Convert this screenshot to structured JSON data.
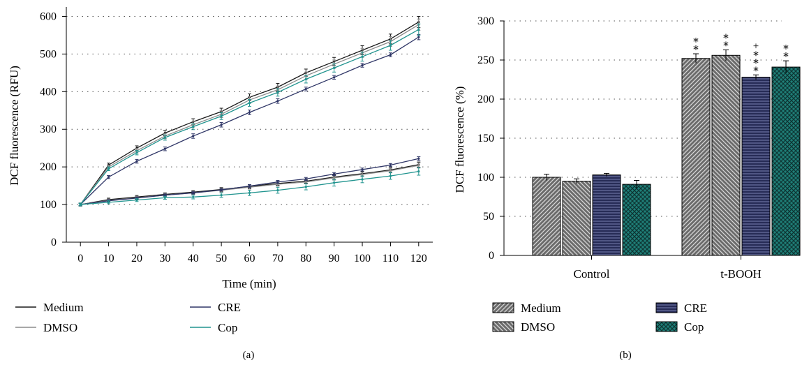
{
  "colors": {
    "medium": "#1a1a1a",
    "dmso": "#8c8c8c",
    "cre": "#2e3566",
    "cop": "#21948f",
    "bar_medium_fill": "#6b6b6b",
    "bar_dmso_fill": "#6b6b6b",
    "bar_cre_fill": "#272c57",
    "bar_cop_fill": "#1f7f78"
  },
  "panel_labels": {
    "a": "(a)",
    "b": "(b)"
  },
  "chart_data": [
    {
      "type": "line",
      "xlabel": "Time (min)",
      "ylabel": "DCF fluorescence (RFU)",
      "x": [
        0,
        10,
        20,
        30,
        40,
        50,
        60,
        70,
        80,
        90,
        100,
        110,
        120
      ],
      "xlim": [
        -5,
        125
      ],
      "ylim": [
        0,
        625
      ],
      "x_ticks": [
        "0",
        "10",
        "20",
        "30",
        "40",
        "50",
        "60",
        "70",
        "80",
        "90",
        "100",
        "110",
        "120"
      ],
      "y_ticks": [
        "0",
        "100",
        "200",
        "300",
        "400",
        "500",
        "600"
      ],
      "grid": "horizontal dotted",
      "legend": [
        "Medium",
        "DMSO",
        "CRE",
        "Cop"
      ],
      "legend_position": "bottom",
      "series": [
        {
          "name": "Medium",
          "group": "t-BOOH",
          "color_key": "medium",
          "values": [
            100,
            205,
            250,
            290,
            320,
            347,
            385,
            412,
            450,
            480,
            510,
            540,
            585
          ],
          "errors": [
            4,
            5,
            6,
            7,
            8,
            9,
            9,
            10,
            10,
            11,
            12,
            13,
            15
          ]
        },
        {
          "name": "DMSO",
          "group": "t-BOOH",
          "color_key": "dmso",
          "values": [
            100,
            200,
            243,
            282,
            312,
            340,
            378,
            405,
            442,
            473,
            503,
            533,
            578
          ],
          "errors": [
            4,
            5,
            6,
            7,
            8,
            9,
            9,
            10,
            10,
            11,
            12,
            13,
            15
          ]
        },
        {
          "name": "CRE",
          "group": "t-BOOH",
          "color_key": "cre",
          "values": [
            100,
            173,
            215,
            248,
            282,
            312,
            345,
            375,
            407,
            438,
            470,
            498,
            545
          ],
          "errors": [
            3,
            4,
            5,
            5,
            6,
            6,
            6,
            6,
            5,
            5,
            5,
            5,
            7
          ]
        },
        {
          "name": "Cop",
          "group": "t-BOOH",
          "color_key": "cop",
          "values": [
            100,
            195,
            238,
            278,
            307,
            335,
            370,
            398,
            433,
            463,
            493,
            523,
            565
          ],
          "errors": [
            4,
            5,
            6,
            7,
            8,
            9,
            9,
            10,
            10,
            11,
            12,
            13,
            15
          ]
        },
        {
          "name": "Medium",
          "group": "Control",
          "color_key": "medium",
          "values": [
            100,
            113,
            120,
            127,
            133,
            140,
            148,
            156,
            162,
            173,
            182,
            192,
            206
          ],
          "errors": [
            3,
            4,
            4,
            4,
            4,
            5,
            5,
            5,
            5,
            6,
            6,
            6,
            7
          ]
        },
        {
          "name": "DMSO",
          "group": "Control",
          "color_key": "dmso",
          "values": [
            100,
            111,
            118,
            125,
            131,
            138,
            146,
            154,
            160,
            171,
            180,
            190,
            204
          ],
          "errors": [
            3,
            4,
            4,
            4,
            4,
            5,
            5,
            5,
            5,
            6,
            6,
            6,
            7
          ]
        },
        {
          "name": "CRE",
          "group": "Control",
          "color_key": "cre",
          "values": [
            100,
            110,
            117,
            125,
            131,
            139,
            149,
            160,
            168,
            181,
            193,
            205,
            222
          ],
          "errors": [
            3,
            3,
            3,
            3,
            3,
            3,
            4,
            4,
            4,
            4,
            4,
            4,
            5
          ]
        },
        {
          "name": "Cop",
          "group": "Control",
          "color_key": "cop",
          "values": [
            100,
            106,
            112,
            118,
            120,
            125,
            131,
            138,
            147,
            158,
            167,
            176,
            188
          ],
          "errors": [
            3,
            4,
            4,
            4,
            5,
            6,
            7,
            8,
            8,
            9,
            9,
            9,
            10
          ]
        }
      ]
    },
    {
      "type": "bar",
      "categories": [
        "Control",
        "t-BOOH"
      ],
      "ylabel": "DCF fluorescence (%)",
      "xlabel": "",
      "ylim": [
        0,
        300
      ],
      "y_ticks": [
        "0",
        "50",
        "100",
        "150",
        "200",
        "250",
        "300"
      ],
      "grid": "horizontal dotted",
      "legend": [
        "Medium",
        "DMSO",
        "CRE",
        "Cop"
      ],
      "legend_position": "bottom",
      "series": [
        {
          "name": "Medium",
          "color_key": "bar_medium_fill",
          "pattern": "diag-right",
          "values": [
            100,
            252
          ],
          "errors": [
            4,
            6
          ],
          "annotations": [
            "",
            "∗∗"
          ]
        },
        {
          "name": "DMSO",
          "color_key": "bar_dmso_fill",
          "pattern": "diag-left",
          "values": [
            95,
            256
          ],
          "errors": [
            3,
            7
          ],
          "annotations": [
            "",
            "∗∗"
          ]
        },
        {
          "name": "CRE",
          "color_key": "bar_cre_fill",
          "pattern": "horizontal",
          "values": [
            103,
            228
          ],
          "errors": [
            2,
            3
          ],
          "annotations": [
            "",
            "∗∗∗+"
          ]
        },
        {
          "name": "Cop",
          "color_key": "bar_cop_fill",
          "pattern": "crosshatch",
          "values": [
            91,
            241
          ],
          "errors": [
            5,
            8
          ],
          "annotations": [
            "",
            "∗∗"
          ]
        }
      ]
    }
  ]
}
